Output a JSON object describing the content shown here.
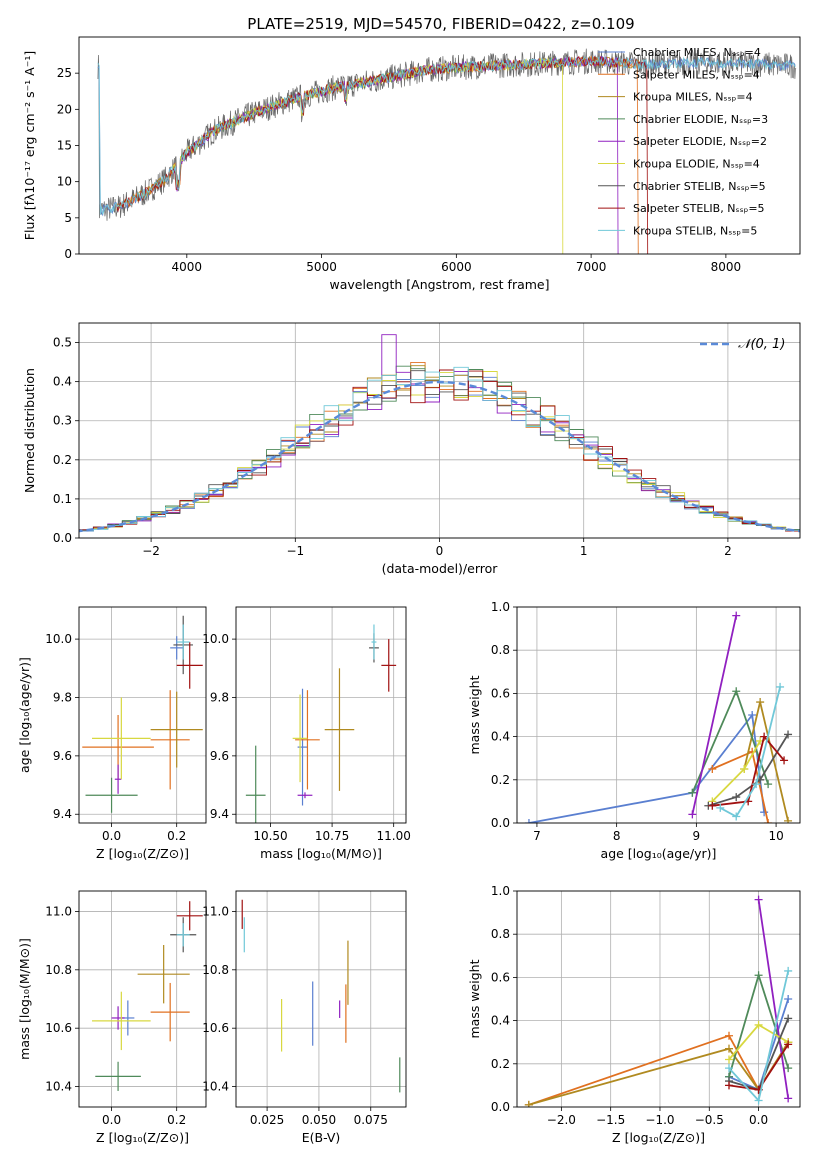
{
  "title": "PLATE=2519, MJD=54570, FIBERID=0422, z=0.109",
  "series_colors": [
    "#5a7fd0",
    "#e07020",
    "#b08a20",
    "#4f8a5a",
    "#9020c0",
    "#d8d840",
    "#555555",
    "#a01010",
    "#70c8d8"
  ],
  "chart_data": [
    {
      "type": "line",
      "name": "spectrum",
      "xlabel": "wavelength [Angstrom, rest frame]",
      "ylabel": "Flux [fλ10⁻¹⁷ erg cm⁻² s⁻¹ A⁻¹]",
      "xlim": [
        3200,
        8550
      ],
      "ylim": [
        0,
        30
      ],
      "xticks": [
        "4000",
        "5000",
        "6000",
        "7000",
        "8000"
      ],
      "yticks": [
        "0",
        "5",
        "10",
        "15",
        "20",
        "25"
      ],
      "legend_loc": "upper-right",
      "series": [
        {
          "name": "Chabrier MILES, Nₛₛₚ=4"
        },
        {
          "name": "Salpeter MILES, Nₛₛₚ=4"
        },
        {
          "name": "Kroupa MILES, Nₛₛₚ=4"
        },
        {
          "name": "Chabrier ELODIE, Nₛₛₚ=3"
        },
        {
          "name": "Salpeter ELODIE, Nₛₛₚ=2"
        },
        {
          "name": "Kroupa ELODIE, Nₛₛₚ=4"
        },
        {
          "name": "Chabrier STELIB, Nₛₛₚ=5"
        },
        {
          "name": "Salpeter STELIB, Nₛₛₚ=5"
        },
        {
          "name": "Kroupa STELIB, Nₛₛₚ=5"
        }
      ],
      "continuum": [
        [
          3350,
          6
        ],
        [
          3500,
          6.5
        ],
        [
          3700,
          8.5
        ],
        [
          3850,
          10.5
        ],
        [
          4000,
          14
        ],
        [
          4200,
          17
        ],
        [
          4500,
          19.5
        ],
        [
          4800,
          21.5
        ],
        [
          5100,
          23
        ],
        [
          5400,
          24
        ],
        [
          5800,
          25.5
        ],
        [
          6200,
          26
        ],
        [
          6600,
          26.3
        ],
        [
          7000,
          26.7
        ],
        [
          7400,
          26.2
        ],
        [
          7800,
          26.5
        ],
        [
          8200,
          26.3
        ],
        [
          8500,
          26
        ]
      ]
    },
    {
      "type": "step",
      "name": "residuals",
      "xlabel": "(data-model)/error",
      "ylabel": "Normed distribution",
      "xlim": [
        -2.5,
        2.5
      ],
      "ylim": [
        0,
        0.55
      ],
      "xticks": [
        "−2",
        "−1",
        "0",
        "1",
        "2"
      ],
      "yticks": [
        "0.0",
        "0.1",
        "0.2",
        "0.3",
        "0.4",
        "0.5"
      ],
      "legend": "𝒩(0, 1)",
      "legend_loc": "upper-right"
    },
    {
      "type": "errorbar",
      "name": "age-vs-Z",
      "xlabel": "Z [log₁₀(Z/Z⊙)]",
      "ylabel": "age  [log₁₀(age/yr)]",
      "xlim": [
        -0.1,
        0.29
      ],
      "ylim": [
        9.37,
        10.11
      ],
      "xticks": [
        "0.0",
        "0.2"
      ],
      "yticks": [
        "9.4",
        "9.6",
        "9.8",
        "10.0"
      ],
      "points": [
        {
          "x": 0.02,
          "y": 9.63,
          "xerr": 0.11,
          "yerr": 0.11,
          "c": 1
        },
        {
          "x": 0.18,
          "y": 9.655,
          "xerr": 0.06,
          "yerr": 0.17,
          "c": 1
        },
        {
          "x": 0.2,
          "y": 9.97,
          "xerr": 0.02,
          "yerr": 0.04,
          "c": 0
        },
        {
          "x": 0.0,
          "y": 9.465,
          "xerr": 0.08,
          "yerr": 0.06,
          "c": 3
        },
        {
          "x": 0.02,
          "y": 9.52,
          "xerr": 0.01,
          "yerr": 0.05,
          "c": 4
        },
        {
          "x": 0.03,
          "y": 9.66,
          "xerr": 0.09,
          "yerr": 0.14,
          "c": 5
        },
        {
          "x": 0.22,
          "y": 9.98,
          "xerr": 0.03,
          "yerr": 0.1,
          "c": 6
        },
        {
          "x": 0.24,
          "y": 9.91,
          "xerr": 0.04,
          "yerr": 0.08,
          "c": 7
        },
        {
          "x": 0.22,
          "y": 9.99,
          "xerr": 0.02,
          "yerr": 0.06,
          "c": 8
        },
        {
          "x": 0.2,
          "y": 9.69,
          "xerr": 0.08,
          "yerr": 0.13,
          "c": 2
        }
      ]
    },
    {
      "type": "errorbar",
      "name": "age-vs-mass",
      "xlabel": "mass [log₁₀(M/M⊙)]",
      "ylabel": "",
      "xlim": [
        10.36,
        11.05
      ],
      "ylim": [
        9.37,
        10.11
      ],
      "xticks": [
        "10.50",
        "10.75",
        "11.00"
      ],
      "yticks": [
        "9.4",
        "9.6",
        "9.8",
        "10.0"
      ],
      "points": [
        {
          "x": 10.63,
          "y": 9.63,
          "xerr": 0.02,
          "yerr": 0.2,
          "c": 0
        },
        {
          "x": 10.65,
          "y": 9.655,
          "xerr": 0.05,
          "yerr": 0.17,
          "c": 1
        },
        {
          "x": 10.44,
          "y": 9.465,
          "xerr": 0.04,
          "yerr": 0.17,
          "c": 3
        },
        {
          "x": 10.64,
          "y": 9.465,
          "xerr": 0.03,
          "yerr": 0.01,
          "c": 4
        },
        {
          "x": 10.62,
          "y": 9.66,
          "xerr": 0.03,
          "yerr": 0.15,
          "c": 5
        },
        {
          "x": 10.92,
          "y": 9.97,
          "xerr": 0.02,
          "yerr": 0.05,
          "c": 6
        },
        {
          "x": 10.98,
          "y": 9.91,
          "xerr": 0.03,
          "yerr": 0.09,
          "c": 7
        },
        {
          "x": 10.92,
          "y": 9.99,
          "xerr": 0.01,
          "yerr": 0.06,
          "c": 8
        },
        {
          "x": 10.78,
          "y": 9.69,
          "xerr": 0.06,
          "yerr": 0.21,
          "c": 2
        }
      ]
    },
    {
      "type": "line",
      "name": "mass-weight-vs-age",
      "xlabel": "age  [log₁₀(age/yr)]",
      "ylabel": "mass weight",
      "xlim": [
        6.75,
        10.3
      ],
      "ylim": [
        0,
        1
      ],
      "xticks": [
        "7",
        "8",
        "9",
        "10"
      ],
      "yticks": [
        "0.0",
        "0.2",
        "0.4",
        "0.6",
        "0.8",
        "1.0"
      ],
      "series": [
        {
          "c": 0,
          "x": [
            6.9,
            8.95,
            9.7,
            9.85
          ],
          "y": [
            0.0,
            0.14,
            0.5,
            0.05
          ]
        },
        {
          "c": 1,
          "x": [
            9.2,
            9.7,
            9.9
          ],
          "y": [
            0.25,
            0.33,
            0.0
          ]
        },
        {
          "c": 2,
          "x": [
            9.6,
            9.8,
            10.15
          ],
          "y": [
            0.25,
            0.56,
            0.01
          ]
        },
        {
          "c": 3,
          "x": [
            8.95,
            9.5,
            9.9
          ],
          "y": [
            0.14,
            0.61,
            0.18
          ]
        },
        {
          "c": 4,
          "x": [
            8.95,
            9.5
          ],
          "y": [
            0.04,
            0.96
          ]
        },
        {
          "c": 5,
          "x": [
            9.2,
            9.6,
            9.8
          ],
          "y": [
            0.1,
            0.25,
            0.38
          ]
        },
        {
          "c": 6,
          "x": [
            9.15,
            9.5,
            9.8,
            10.15
          ],
          "y": [
            0.08,
            0.12,
            0.2,
            0.41
          ]
        },
        {
          "c": 7,
          "x": [
            9.2,
            9.65,
            9.85,
            10.1
          ],
          "y": [
            0.08,
            0.1,
            0.4,
            0.29
          ]
        },
        {
          "c": 8,
          "x": [
            9.3,
            9.5,
            9.75,
            10.05
          ],
          "y": [
            0.07,
            0.03,
            0.18,
            0.63
          ]
        }
      ]
    },
    {
      "type": "errorbar",
      "name": "mass-vs-Z",
      "xlabel": "Z [log₁₀(Z/Z⊙)]",
      "ylabel": "mass [log₁₀(M/M⊙)]",
      "xlim": [
        -0.1,
        0.29
      ],
      "ylim": [
        10.33,
        11.07
      ],
      "xticks": [
        "0.0",
        "0.2"
      ],
      "yticks": [
        "10.4",
        "10.6",
        "10.8",
        "11.0"
      ],
      "points": [
        {
          "x": 0.05,
          "y": 10.635,
          "xerr": 0.02,
          "yerr": 0.06,
          "c": 0
        },
        {
          "x": 0.18,
          "y": 10.655,
          "xerr": 0.06,
          "yerr": 0.1,
          "c": 1
        },
        {
          "x": 0.02,
          "y": 10.435,
          "xerr": 0.07,
          "yerr": 0.05,
          "c": 3
        },
        {
          "x": 0.02,
          "y": 10.635,
          "xerr": 0.02,
          "yerr": 0.04,
          "c": 4
        },
        {
          "x": 0.03,
          "y": 10.625,
          "xerr": 0.09,
          "yerr": 0.1,
          "c": 5
        },
        {
          "x": 0.22,
          "y": 10.92,
          "xerr": 0.04,
          "yerr": 0.06,
          "c": 6
        },
        {
          "x": 0.24,
          "y": 10.985,
          "xerr": 0.04,
          "yerr": 0.05,
          "c": 7
        },
        {
          "x": 0.22,
          "y": 10.92,
          "xerr": 0.02,
          "yerr": 0.04,
          "c": 8
        },
        {
          "x": 0.16,
          "y": 10.785,
          "xerr": 0.08,
          "yerr": 0.1,
          "c": 2
        }
      ]
    },
    {
      "type": "errorbar",
      "name": "mass-vs-EBV",
      "xlabel": "E(B-V)",
      "ylabel": "",
      "xlim": [
        0.01,
        0.092
      ],
      "ylim": [
        10.33,
        11.07
      ],
      "xticks": [
        "0.025",
        "0.050",
        "0.075"
      ],
      "yticks": [
        "10.4",
        "10.6",
        "10.8",
        "11.0"
      ],
      "points": [
        {
          "x": 0.047,
          "y": 10.65,
          "xerr": 0,
          "yerr": 0.11,
          "c": 0
        },
        {
          "x": 0.063,
          "y": 10.65,
          "xerr": 0,
          "yerr": 0.1,
          "c": 1
        },
        {
          "x": 0.089,
          "y": 10.44,
          "xerr": 0,
          "yerr": 0.06,
          "c": 3
        },
        {
          "x": 0.06,
          "y": 10.665,
          "xerr": 0,
          "yerr": 0.03,
          "c": 4
        },
        {
          "x": 0.032,
          "y": 10.61,
          "xerr": 0,
          "yerr": 0.09,
          "c": 5
        },
        {
          "x": 0.013,
          "y": 10.99,
          "xerr": 0,
          "yerr": 0.05,
          "c": 7
        },
        {
          "x": 0.014,
          "y": 10.92,
          "xerr": 0,
          "yerr": 0.06,
          "c": 8
        },
        {
          "x": 0.064,
          "y": 10.79,
          "xerr": 0,
          "yerr": 0.11,
          "c": 2
        }
      ]
    },
    {
      "type": "line",
      "name": "mass-weight-vs-Z",
      "xlabel": "Z [log₁₀(Z/Z⊙)]",
      "ylabel": "mass weight",
      "xlim": [
        -2.45,
        0.42
      ],
      "ylim": [
        0,
        1
      ],
      "xticks": [
        "−2.0",
        "−1.5",
        "−1.0",
        "−0.5",
        "0.0"
      ],
      "yticks": [
        "0.0",
        "0.2",
        "0.4",
        "0.6",
        "0.8",
        "1.0"
      ],
      "series": [
        {
          "c": 1,
          "x": [
            -2.33,
            -0.3,
            0.0,
            0.3
          ],
          "y": [
            0.01,
            0.33,
            0.08,
            0.3
          ]
        },
        {
          "c": 2,
          "x": [
            -2.33,
            -0.3,
            0.0,
            0.3
          ],
          "y": [
            0.01,
            0.27,
            0.08,
            0.3
          ]
        },
        {
          "c": 0,
          "x": [
            -0.3,
            0.0,
            0.3
          ],
          "y": [
            0.14,
            0.08,
            0.5
          ]
        },
        {
          "c": 3,
          "x": [
            -0.3,
            0.0,
            0.3
          ],
          "y": [
            0.14,
            0.61,
            0.18
          ]
        },
        {
          "c": 4,
          "x": [
            0.0,
            0.3
          ],
          "y": [
            0.96,
            0.04
          ]
        },
        {
          "c": 5,
          "x": [
            -0.3,
            0.0,
            0.3
          ],
          "y": [
            0.22,
            0.38,
            0.3
          ]
        },
        {
          "c": 6,
          "x": [
            -0.3,
            0.0,
            0.3
          ],
          "y": [
            0.12,
            0.08,
            0.41
          ]
        },
        {
          "c": 7,
          "x": [
            -0.3,
            0.0,
            0.3
          ],
          "y": [
            0.1,
            0.08,
            0.29
          ]
        },
        {
          "c": 8,
          "x": [
            -0.3,
            0.0,
            0.3
          ],
          "y": [
            0.18,
            0.03,
            0.63
          ]
        }
      ]
    }
  ]
}
